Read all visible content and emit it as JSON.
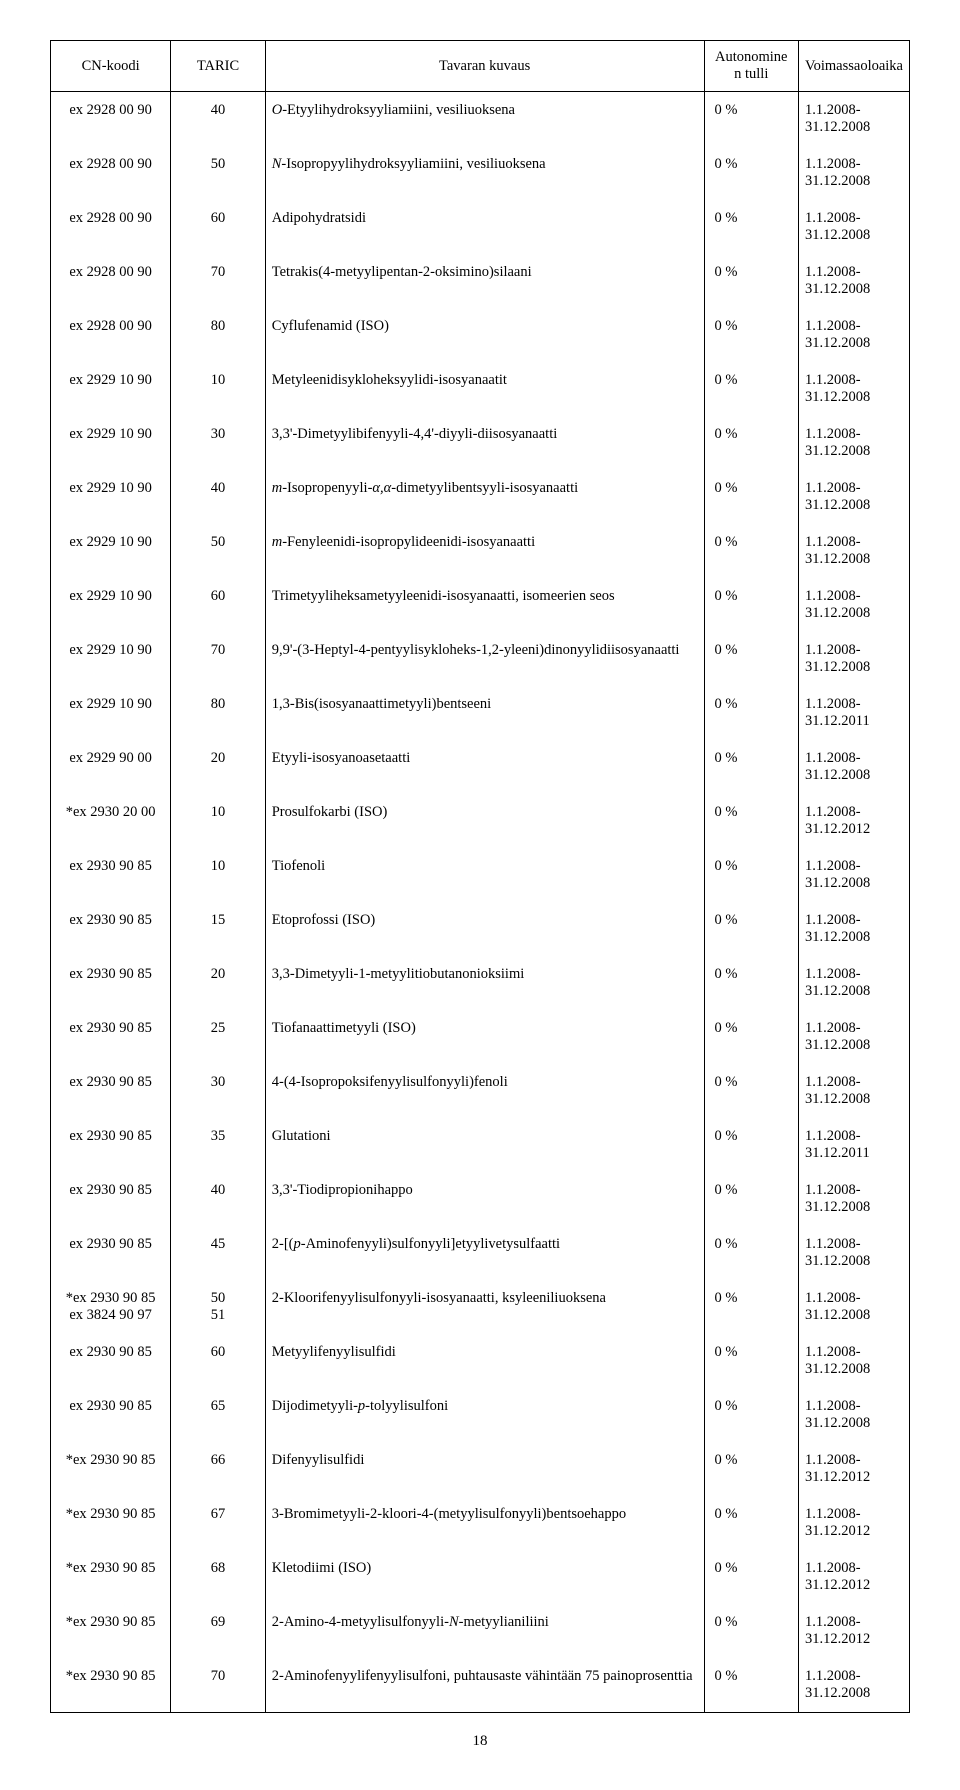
{
  "columns": {
    "cn": "CN-koodi",
    "taric": "TARIC",
    "desc": "Tavaran kuvaus",
    "duty": "Autonomine\nn tulli",
    "validity": "Voimassaoloaika"
  },
  "rows": [
    {
      "cn": "ex 2928 00 90",
      "taric": "40",
      "desc": "<em class='it'>O</em>-Etyylihydroksyyliamiini, vesiliuoksena",
      "duty": "0 %",
      "validity": "1.1.2008-31.12.2008"
    },
    {
      "cn": "ex 2928 00 90",
      "taric": "50",
      "desc": "<em class='it'>N</em>-Isopropyylihydroksyyliamiini, vesiliuoksena",
      "duty": "0 %",
      "validity": "1.1.2008-31.12.2008"
    },
    {
      "cn": "ex 2928 00 90",
      "taric": "60",
      "desc": "Adipohydratsidi",
      "duty": "0 %",
      "validity": "1.1.2008-31.12.2008"
    },
    {
      "cn": "ex 2928 00 90",
      "taric": "70",
      "desc": "Tetrakis(4-metyylipentan-2-oksimino)silaani",
      "duty": "0 %",
      "validity": "1.1.2008-31.12.2008"
    },
    {
      "cn": "ex 2928 00 90",
      "taric": "80",
      "desc": "Cyflufenamid (ISO)",
      "duty": "0 %",
      "validity": "1.1.2008-31.12.2008"
    },
    {
      "cn": "ex 2929 10 90",
      "taric": "10",
      "desc": "Metyleenidisykloheksyylidi-isosyanaatit",
      "duty": "0 %",
      "validity": "1.1.2008-31.12.2008"
    },
    {
      "cn": "ex 2929 10 90",
      "taric": "30",
      "desc": "3,3'-Dimetyylibifenyyli-4,4'-diyyli-diisosyanaatti",
      "duty": "0 %",
      "validity": "1.1.2008-31.12.2008"
    },
    {
      "cn": "ex 2929 10 90",
      "taric": "40",
      "desc": "<em class='it'>m</em>-Isopropenyyli-<em class='it'>α,α</em>-dimetyylibentsyyli-isosyanaatti",
      "duty": "0 %",
      "validity": "1.1.2008-31.12.2008"
    },
    {
      "cn": "ex 2929 10 90",
      "taric": "50",
      "desc": "<em class='it'>m</em>-Fenyleenidi-isopropylideenidi-isosyanaatti",
      "duty": "0 %",
      "validity": "1.1.2008-31.12.2008"
    },
    {
      "cn": "ex 2929 10 90",
      "taric": "60",
      "desc": "Trimetyyliheksametyyleenidi-isosyanaatti, isomeerien seos",
      "duty": "0 %",
      "validity": "1.1.2008-31.12.2008"
    },
    {
      "cn": "ex 2929 10 90",
      "taric": "70",
      "desc": "9,9'-(3-Heptyl-4-pentyylisykloheks-1,2-yleeni)dinonyylidiisosyanaatti",
      "duty": "0 %",
      "validity": "1.1.2008-31.12.2008"
    },
    {
      "cn": "ex 2929 10 90",
      "taric": "80",
      "desc": "1,3-Bis(isosyanaattimetyyli)bentseeni",
      "duty": "0 %",
      "validity": "1.1.2008-31.12.2011"
    },
    {
      "cn": "ex 2929 90 00",
      "taric": "20",
      "desc": "Etyyli-isosyanoasetaatti",
      "duty": "0 %",
      "validity": "1.1.2008-31.12.2008"
    },
    {
      "cn": "*ex 2930 20 00",
      "taric": "10",
      "desc": "Prosulfokarbi (ISO)",
      "duty": "0 %",
      "validity": "1.1.2008-31.12.2012"
    },
    {
      "cn": "ex 2930 90 85",
      "taric": "10",
      "desc": "Tiofenoli",
      "duty": "0 %",
      "validity": "1.1.2008-31.12.2008"
    },
    {
      "cn": "ex 2930 90 85",
      "taric": "15",
      "desc": "Etoprofossi (ISO)",
      "duty": "0 %",
      "validity": "1.1.2008-31.12.2008"
    },
    {
      "cn": "ex 2930 90 85",
      "taric": "20",
      "desc": "3,3-Dimetyyli-1-metyylitiobutanonioksiimi",
      "duty": "0 %",
      "validity": "1.1.2008-31.12.2008"
    },
    {
      "cn": "ex 2930 90 85",
      "taric": "25",
      "desc": "Tiofanaattimetyyli (ISO)",
      "duty": "0 %",
      "validity": "1.1.2008-31.12.2008"
    },
    {
      "cn": "ex 2930 90 85",
      "taric": "30",
      "desc": "4-(4-Isopropoksifenyylisulfonyyli)fenoli",
      "duty": "0 %",
      "validity": "1.1.2008-31.12.2008"
    },
    {
      "cn": "ex 2930 90 85",
      "taric": "35",
      "desc": "Glutationi",
      "duty": "0 %",
      "validity": "1.1.2008-31.12.2011"
    },
    {
      "cn": "ex 2930 90 85",
      "taric": "40",
      "desc": "3,3'-Tiodipropionihappo",
      "duty": "0 %",
      "validity": "1.1.2008-31.12.2008"
    },
    {
      "cn": "ex 2930 90 85",
      "taric": "45",
      "desc": "2-[(<em class='it'>p</em>-Aminofenyyli)sulfonyyli]etyylivetysulfaatti",
      "duty": "0 %",
      "validity": "1.1.2008-31.12.2008"
    },
    {
      "cn": "*ex 2930 90 85\nex 3824 90 97",
      "taric": "50\n51",
      "desc": "2-Kloorifenyylisulfonyyli-isosyanaatti, ksyleeniliuoksena",
      "duty": "0 %",
      "validity": "1.1.2008-31.12.2008"
    },
    {
      "cn": "ex 2930 90 85",
      "taric": "60",
      "desc": "Metyylifenyylisulfidi",
      "duty": "0 %",
      "validity": "1.1.2008-31.12.2008"
    },
    {
      "cn": "ex 2930 90 85",
      "taric": "65",
      "desc": "Dijodimetyyli-<em class='it'>p</em>-tolyylisulfoni",
      "duty": "0 %",
      "validity": "1.1.2008-31.12.2008"
    },
    {
      "cn": "*ex 2930 90 85",
      "taric": "66",
      "desc": "Difenyylisulfidi",
      "duty": "0 %",
      "validity": "1.1.2008-31.12.2012"
    },
    {
      "cn": "*ex 2930 90 85",
      "taric": "67",
      "desc": "3-Bromimetyyli-2-kloori-4-(metyylisulfonyyli)bentsoehappo",
      "duty": "0 %",
      "validity": "1.1.2008-31.12.2012"
    },
    {
      "cn": "*ex 2930 90 85",
      "taric": "68",
      "desc": "Kletodiimi (ISO)",
      "duty": "0 %",
      "validity": "1.1.2008-31.12.2012"
    },
    {
      "cn": "*ex 2930 90 85",
      "taric": "69",
      "desc": "2-Amino-4-metyylisulfonyyli-<em class='it'>N</em>-metyylianiliini",
      "duty": "0 %",
      "validity": "1.1.2008-31.12.2012"
    },
    {
      "cn": "*ex 2930 90 85",
      "taric": "70",
      "desc": "2-Aminofenyylifenyylisulfoni, puhtausaste vähintään 75 painoprosenttia",
      "duty": "0 %",
      "validity": "1.1.2008-31.12.2008"
    }
  ],
  "pageNumber": "18"
}
